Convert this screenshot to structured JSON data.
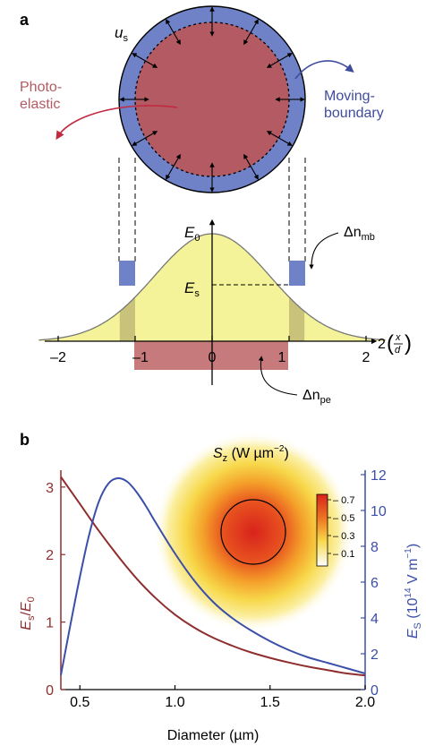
{
  "panel_a": {
    "label": "a",
    "u_label": "u",
    "u_sub": "s",
    "photoelastic_label": [
      "Photo-",
      "elastic"
    ],
    "moving_boundary_label": [
      "Moving-",
      "boundary"
    ],
    "e0_label": "E",
    "e0_sub": "0",
    "es_label": "E",
    "es_sub": "s",
    "dn_mb_prefix": "Δn",
    "dn_mb_sub": "mb",
    "dn_pe_prefix": "Δn",
    "dn_pe_sub": "pe",
    "x_axis_label_prefix": "2",
    "x_axis_label_num": "x",
    "x_axis_label_den": "d",
    "x_ticks": [
      "–2",
      "–1",
      "0",
      "1",
      "2"
    ],
    "colors": {
      "core": "#b35a63",
      "boundary": "#6f82c8",
      "yellow_fill": "#f5f39a",
      "overlap_fill": "#c9c27a",
      "pe_rect": "#c77a7c",
      "red_arrow": "#c22a40",
      "blue_arrow": "#3f4c9c"
    }
  },
  "panel_b": {
    "label": "b",
    "inset_title_prefix": "S",
    "inset_title_sub": "z",
    "inset_title_units": " (W µm",
    "inset_title_exp": "−2",
    "inset_title_close": ")",
    "colorbar_ticks": [
      "0.7",
      "0.5",
      "0.3",
      "0.1"
    ]
  },
  "chart_data": {
    "type": "line",
    "xlabel": "Diameter (µm)",
    "ylabel_left": "E_s/E_0",
    "ylabel_right": "E_s (10^14 V m^-1)",
    "xlim": [
      0.4,
      2.0
    ],
    "ylim_left": [
      0,
      3.25
    ],
    "ylim_right": [
      0,
      12.25
    ],
    "x_ticks": [
      "0.5",
      "1.0",
      "1.5",
      "2.0"
    ],
    "x_tick_values": [
      0.5,
      1.0,
      1.5,
      2.0
    ],
    "y_ticks_left": [
      "0",
      "1",
      "2",
      "3"
    ],
    "y_tick_values_left": [
      0,
      1,
      2,
      3
    ],
    "y_ticks_right": [
      "0",
      "2",
      "4",
      "6",
      "8",
      "10",
      "12"
    ],
    "y_tick_values_right": [
      0,
      2,
      4,
      6,
      8,
      10,
      12
    ],
    "series": [
      {
        "axis": "left",
        "color": "#8f2e2e",
        "x": [
          0.4,
          0.5,
          0.6,
          0.7,
          0.8,
          0.9,
          1.0,
          1.1,
          1.2,
          1.3,
          1.4,
          1.5,
          1.6,
          1.7,
          1.8,
          1.9,
          2.0
        ],
        "y": [
          3.15,
          2.75,
          2.35,
          1.98,
          1.64,
          1.35,
          1.11,
          0.92,
          0.77,
          0.65,
          0.55,
          0.47,
          0.4,
          0.34,
          0.29,
          0.24,
          0.21
        ]
      },
      {
        "axis": "right",
        "color": "#3b4fa8",
        "x": [
          0.4,
          0.45,
          0.5,
          0.55,
          0.6,
          0.65,
          0.7,
          0.75,
          0.8,
          0.85,
          0.9,
          1.0,
          1.1,
          1.2,
          1.3,
          1.4,
          1.5,
          1.6,
          1.7,
          1.8,
          1.9,
          2.0
        ],
        "y": [
          0.8,
          3.6,
          6.3,
          8.7,
          10.5,
          11.5,
          11.8,
          11.6,
          11.0,
          10.2,
          9.3,
          7.6,
          6.1,
          4.9,
          4.0,
          3.3,
          2.7,
          2.2,
          1.8,
          1.5,
          1.2,
          0.9
        ]
      }
    ]
  }
}
